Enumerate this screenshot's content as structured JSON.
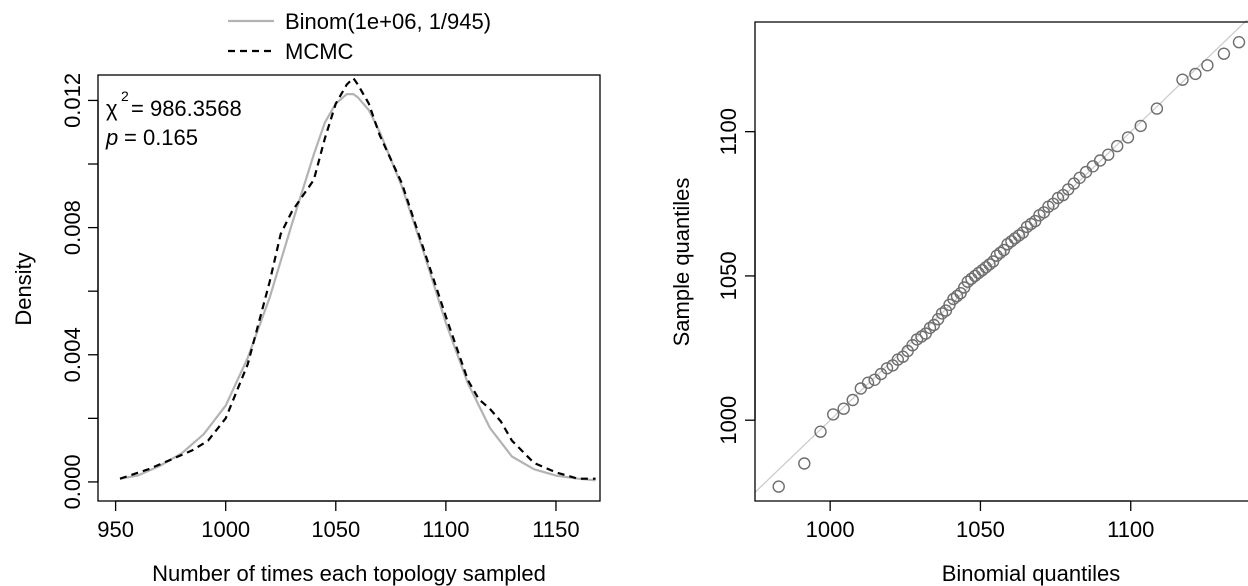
{
  "chart_data": [
    {
      "type": "line",
      "xlabel": "Number of times each topology sampled",
      "ylabel": "Density",
      "xlim": [
        942,
        1170
      ],
      "ylim": [
        -0.0006,
        0.0128
      ],
      "xticks": [
        950,
        1000,
        1050,
        1100,
        1150
      ],
      "yticks": [
        0.0,
        0.004,
        0.008,
        0.012
      ],
      "ytick_labels": [
        "0.000",
        "0.004",
        "0.008",
        "0.012"
      ],
      "yticks_minor": [
        0.002,
        0.006,
        0.01
      ],
      "grid": false,
      "legend_position": "top-center, outside plot",
      "annotation": {
        "chi_symbol": "χ",
        "chi_exp": "2",
        "chi_value": "= 986.3568",
        "p_symbol": "p",
        "p_value": "= 0.165"
      },
      "series": [
        {
          "name": "Binom(1e+06, 1/945)",
          "style": "solid",
          "color": "#b3b3b3",
          "x": [
            952,
            960,
            970,
            980,
            990,
            1000,
            1010,
            1020,
            1030,
            1040,
            1045,
            1050,
            1055,
            1058,
            1060,
            1065,
            1070,
            1080,
            1090,
            1100,
            1110,
            1120,
            1130,
            1140,
            1150,
            1160,
            1168
          ],
          "y": [
            0.0001,
            0.0002,
            0.0005,
            0.0009,
            0.0015,
            0.0024,
            0.0039,
            0.0058,
            0.0081,
            0.0103,
            0.0113,
            0.0119,
            0.0122,
            0.0122,
            0.0121,
            0.0117,
            0.011,
            0.0093,
            0.0072,
            0.005,
            0.0031,
            0.0017,
            0.0008,
            0.0004,
            0.0002,
            0.0001,
            5e-05
          ]
        },
        {
          "name": "MCMC",
          "style": "dashed",
          "color": "#000000",
          "x": [
            952,
            965,
            975,
            985,
            992,
            1000,
            1010,
            1020,
            1025,
            1030,
            1040,
            1045,
            1050,
            1055,
            1058,
            1060,
            1065,
            1070,
            1080,
            1090,
            1100,
            1110,
            1115,
            1120,
            1125,
            1130,
            1140,
            1150,
            1160,
            1168
          ],
          "y": [
            0.0001,
            0.0004,
            0.0007,
            0.001,
            0.0013,
            0.002,
            0.0037,
            0.0063,
            0.0078,
            0.0085,
            0.0095,
            0.0108,
            0.0119,
            0.0125,
            0.0127,
            0.0125,
            0.0119,
            0.0109,
            0.0094,
            0.0073,
            0.0052,
            0.0032,
            0.0026,
            0.0023,
            0.0019,
            0.0013,
            0.0006,
            0.0003,
            0.0001,
            0.0001
          ]
        }
      ]
    },
    {
      "type": "scatter",
      "xlabel": "Binomial quantiles",
      "ylabel": "Sample quantiles",
      "xlim": [
        975,
        1141
      ],
      "ylim": [
        972,
        1138
      ],
      "xticks": [
        1000,
        1050,
        1100
      ],
      "yticks": [
        1000,
        1050,
        1100
      ],
      "grid": false,
      "reference_line": {
        "slope": 1,
        "intercept": 0,
        "color": "#cccccc"
      },
      "points": {
        "x": [
          982.9,
          991.4,
          996.8,
          1001.0,
          1004.5,
          1007.5,
          1010.2,
          1012.6,
          1014.8,
          1016.9,
          1018.9,
          1020.8,
          1022.5,
          1024.2,
          1025.8,
          1027.4,
          1028.9,
          1030.4,
          1031.8,
          1033.2,
          1034.5,
          1035.9,
          1037.2,
          1038.5,
          1039.7,
          1041.0,
          1042.2,
          1043.4,
          1044.6,
          1045.8,
          1047.0,
          1048.2,
          1049.4,
          1050.6,
          1051.8,
          1053.0,
          1054.2,
          1055.4,
          1056.6,
          1057.8,
          1059.0,
          1060.3,
          1061.5,
          1062.8,
          1064.1,
          1065.5,
          1066.8,
          1068.2,
          1069.6,
          1071.1,
          1072.6,
          1074.2,
          1075.8,
          1077.5,
          1079.2,
          1081.1,
          1083.0,
          1085.1,
          1087.4,
          1089.8,
          1092.5,
          1095.5,
          1099.1,
          1103.3,
          1108.7,
          1117.2
        ],
        "y": [
          977,
          985,
          996,
          1002,
          1004,
          1007,
          1011,
          1013,
          1014,
          1016,
          1018,
          1019,
          1021,
          1022,
          1024,
          1026,
          1028,
          1029,
          1030,
          1032,
          1033,
          1035,
          1037,
          1038,
          1040,
          1042,
          1043,
          1044,
          1046,
          1048,
          1049,
          1050,
          1051,
          1052,
          1053,
          1054,
          1055,
          1057,
          1058,
          1059,
          1061,
          1062,
          1063,
          1064,
          1065,
          1067,
          1068,
          1069,
          1071,
          1072,
          1074,
          1075,
          1077,
          1078,
          1080,
          1082,
          1084,
          1086,
          1088,
          1090,
          1092,
          1095,
          1098,
          1102,
          1108,
          1118
        ]
      },
      "extra_points": {
        "x": [
          1121.5,
          1125.5,
          1131.0,
          1136.0
        ],
        "y": [
          1120,
          1123,
          1127,
          1131
        ]
      }
    }
  ]
}
